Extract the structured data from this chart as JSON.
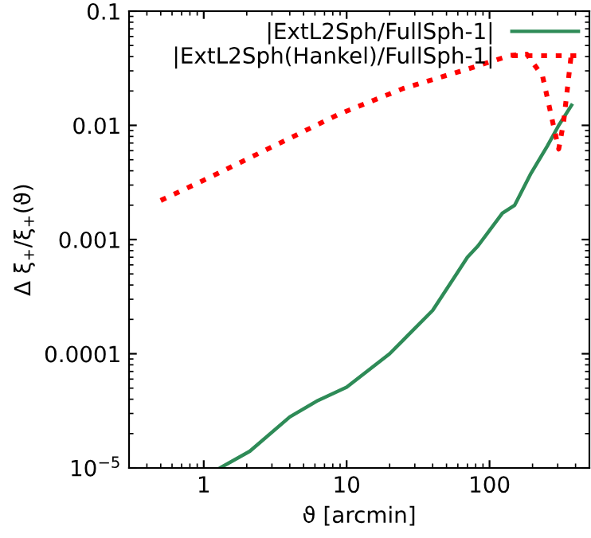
{
  "chart_data": {
    "type": "line",
    "xlabel": "ϑ [arcmin]",
    "ylabel": "Δ ξ$_{+}$/ξ$_{+}$(ϑ)",
    "log": "xy",
    "xlim": [
      0.3,
      500
    ],
    "ylim": [
      1e-05,
      0.1
    ],
    "xticks": [
      1,
      10,
      100
    ],
    "yticks": [
      {
        "value": 1e-05,
        "label": "10$^{−5}$"
      },
      {
        "value": 0.0001,
        "label": "0.0001"
      },
      {
        "value": 0.001,
        "label": "0.001"
      },
      {
        "value": 0.01,
        "label": "0.01"
      },
      {
        "value": 0.1,
        "label": "0.1"
      }
    ],
    "legend": "top right",
    "grid": false,
    "series": [
      {
        "name": "|ExtL2Sph/FullSph-1|",
        "color": "#2e8b57",
        "line_style": "solid",
        "x": [
          1.3,
          2.1,
          4,
          6.3,
          10,
          20,
          40,
          60,
          70,
          83,
          123,
          150,
          195,
          254,
          305,
          375
        ],
        "values": [
          1e-05,
          1.4e-05,
          2.8e-05,
          3.9e-05,
          5.1e-05,
          0.0001,
          0.00024,
          0.00052,
          0.0007,
          0.00088,
          0.0017,
          0.002,
          0.0038,
          0.0066,
          0.01,
          0.015
        ]
      },
      {
        "name": "|ExtL2Sph(Hankel)/FullSph-1|",
        "color": "#ff0000",
        "line_style": "dotted",
        "x": [
          0.5,
          1.1,
          3.1,
          8.8,
          24.8,
          69.7,
          140,
          182,
          235,
          280,
          305,
          330,
          375
        ],
        "values": [
          0.0022,
          0.0035,
          0.0066,
          0.0125,
          0.021,
          0.031,
          0.041,
          0.042,
          0.027,
          0.01,
          0.0062,
          0.0107,
          0.044
        ]
      }
    ]
  }
}
